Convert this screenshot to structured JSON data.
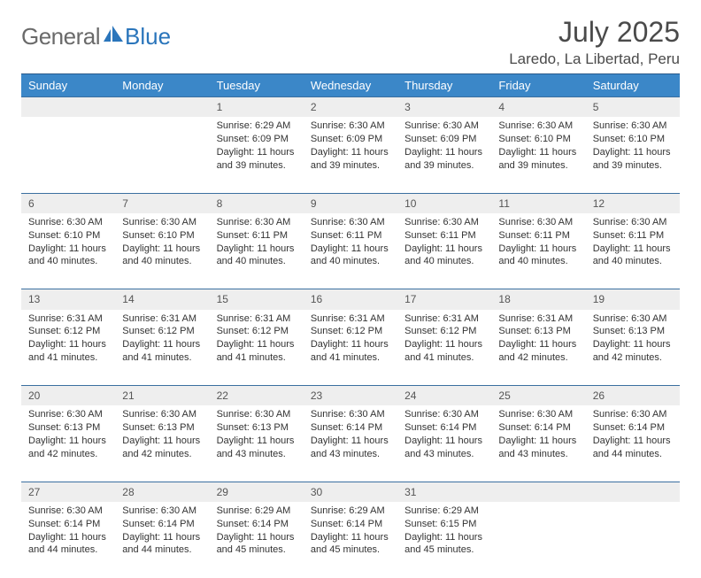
{
  "brand": {
    "part1": "General",
    "part2": "Blue"
  },
  "title": "July 2025",
  "location": "Laredo, La Libertad, Peru",
  "colors": {
    "header_bg": "#3b87c8",
    "header_border": "#2a5a8a",
    "row_border": "#3b6fa0",
    "daynum_bg": "#eeeeee",
    "text": "#333333",
    "brand_gray": "#6a6a6a",
    "brand_blue": "#2a75bb"
  },
  "weekdays": [
    "Sunday",
    "Monday",
    "Tuesday",
    "Wednesday",
    "Thursday",
    "Friday",
    "Saturday"
  ],
  "weeks": [
    [
      null,
      null,
      {
        "n": "1",
        "sr": "Sunrise: 6:29 AM",
        "ss": "Sunset: 6:09 PM",
        "dl": "Daylight: 11 hours and 39 minutes."
      },
      {
        "n": "2",
        "sr": "Sunrise: 6:30 AM",
        "ss": "Sunset: 6:09 PM",
        "dl": "Daylight: 11 hours and 39 minutes."
      },
      {
        "n": "3",
        "sr": "Sunrise: 6:30 AM",
        "ss": "Sunset: 6:09 PM",
        "dl": "Daylight: 11 hours and 39 minutes."
      },
      {
        "n": "4",
        "sr": "Sunrise: 6:30 AM",
        "ss": "Sunset: 6:10 PM",
        "dl": "Daylight: 11 hours and 39 minutes."
      },
      {
        "n": "5",
        "sr": "Sunrise: 6:30 AM",
        "ss": "Sunset: 6:10 PM",
        "dl": "Daylight: 11 hours and 39 minutes."
      }
    ],
    [
      {
        "n": "6",
        "sr": "Sunrise: 6:30 AM",
        "ss": "Sunset: 6:10 PM",
        "dl": "Daylight: 11 hours and 40 minutes."
      },
      {
        "n": "7",
        "sr": "Sunrise: 6:30 AM",
        "ss": "Sunset: 6:10 PM",
        "dl": "Daylight: 11 hours and 40 minutes."
      },
      {
        "n": "8",
        "sr": "Sunrise: 6:30 AM",
        "ss": "Sunset: 6:11 PM",
        "dl": "Daylight: 11 hours and 40 minutes."
      },
      {
        "n": "9",
        "sr": "Sunrise: 6:30 AM",
        "ss": "Sunset: 6:11 PM",
        "dl": "Daylight: 11 hours and 40 minutes."
      },
      {
        "n": "10",
        "sr": "Sunrise: 6:30 AM",
        "ss": "Sunset: 6:11 PM",
        "dl": "Daylight: 11 hours and 40 minutes."
      },
      {
        "n": "11",
        "sr": "Sunrise: 6:30 AM",
        "ss": "Sunset: 6:11 PM",
        "dl": "Daylight: 11 hours and 40 minutes."
      },
      {
        "n": "12",
        "sr": "Sunrise: 6:30 AM",
        "ss": "Sunset: 6:11 PM",
        "dl": "Daylight: 11 hours and 40 minutes."
      }
    ],
    [
      {
        "n": "13",
        "sr": "Sunrise: 6:31 AM",
        "ss": "Sunset: 6:12 PM",
        "dl": "Daylight: 11 hours and 41 minutes."
      },
      {
        "n": "14",
        "sr": "Sunrise: 6:31 AM",
        "ss": "Sunset: 6:12 PM",
        "dl": "Daylight: 11 hours and 41 minutes."
      },
      {
        "n": "15",
        "sr": "Sunrise: 6:31 AM",
        "ss": "Sunset: 6:12 PM",
        "dl": "Daylight: 11 hours and 41 minutes."
      },
      {
        "n": "16",
        "sr": "Sunrise: 6:31 AM",
        "ss": "Sunset: 6:12 PM",
        "dl": "Daylight: 11 hours and 41 minutes."
      },
      {
        "n": "17",
        "sr": "Sunrise: 6:31 AM",
        "ss": "Sunset: 6:12 PM",
        "dl": "Daylight: 11 hours and 41 minutes."
      },
      {
        "n": "18",
        "sr": "Sunrise: 6:31 AM",
        "ss": "Sunset: 6:13 PM",
        "dl": "Daylight: 11 hours and 42 minutes."
      },
      {
        "n": "19",
        "sr": "Sunrise: 6:30 AM",
        "ss": "Sunset: 6:13 PM",
        "dl": "Daylight: 11 hours and 42 minutes."
      }
    ],
    [
      {
        "n": "20",
        "sr": "Sunrise: 6:30 AM",
        "ss": "Sunset: 6:13 PM",
        "dl": "Daylight: 11 hours and 42 minutes."
      },
      {
        "n": "21",
        "sr": "Sunrise: 6:30 AM",
        "ss": "Sunset: 6:13 PM",
        "dl": "Daylight: 11 hours and 42 minutes."
      },
      {
        "n": "22",
        "sr": "Sunrise: 6:30 AM",
        "ss": "Sunset: 6:13 PM",
        "dl": "Daylight: 11 hours and 43 minutes."
      },
      {
        "n": "23",
        "sr": "Sunrise: 6:30 AM",
        "ss": "Sunset: 6:14 PM",
        "dl": "Daylight: 11 hours and 43 minutes."
      },
      {
        "n": "24",
        "sr": "Sunrise: 6:30 AM",
        "ss": "Sunset: 6:14 PM",
        "dl": "Daylight: 11 hours and 43 minutes."
      },
      {
        "n": "25",
        "sr": "Sunrise: 6:30 AM",
        "ss": "Sunset: 6:14 PM",
        "dl": "Daylight: 11 hours and 43 minutes."
      },
      {
        "n": "26",
        "sr": "Sunrise: 6:30 AM",
        "ss": "Sunset: 6:14 PM",
        "dl": "Daylight: 11 hours and 44 minutes."
      }
    ],
    [
      {
        "n": "27",
        "sr": "Sunrise: 6:30 AM",
        "ss": "Sunset: 6:14 PM",
        "dl": "Daylight: 11 hours and 44 minutes."
      },
      {
        "n": "28",
        "sr": "Sunrise: 6:30 AM",
        "ss": "Sunset: 6:14 PM",
        "dl": "Daylight: 11 hours and 44 minutes."
      },
      {
        "n": "29",
        "sr": "Sunrise: 6:29 AM",
        "ss": "Sunset: 6:14 PM",
        "dl": "Daylight: 11 hours and 45 minutes."
      },
      {
        "n": "30",
        "sr": "Sunrise: 6:29 AM",
        "ss": "Sunset: 6:14 PM",
        "dl": "Daylight: 11 hours and 45 minutes."
      },
      {
        "n": "31",
        "sr": "Sunrise: 6:29 AM",
        "ss": "Sunset: 6:15 PM",
        "dl": "Daylight: 11 hours and 45 minutes."
      },
      null,
      null
    ]
  ]
}
